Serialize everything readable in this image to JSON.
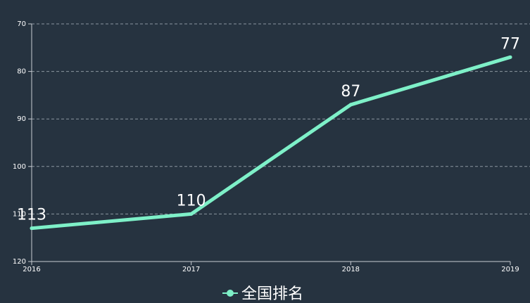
{
  "chart_data": {
    "type": "line",
    "x": [
      "2016",
      "2017",
      "2018",
      "2019"
    ],
    "series": [
      {
        "name": "全国排名",
        "values": [
          113,
          110,
          87,
          77
        ]
      }
    ],
    "ylim": [
      70,
      120
    ],
    "y_inverted": true,
    "yticks": [
      70,
      80,
      90,
      100,
      110,
      120
    ],
    "grid": "horizontal dashed",
    "legend_position": "bottom-center",
    "colors": {
      "background": "#263340",
      "series": "#7ef0c8",
      "grid": "#8c96a0",
      "axis": "#c8ccd2",
      "text": "#ffffff"
    }
  }
}
